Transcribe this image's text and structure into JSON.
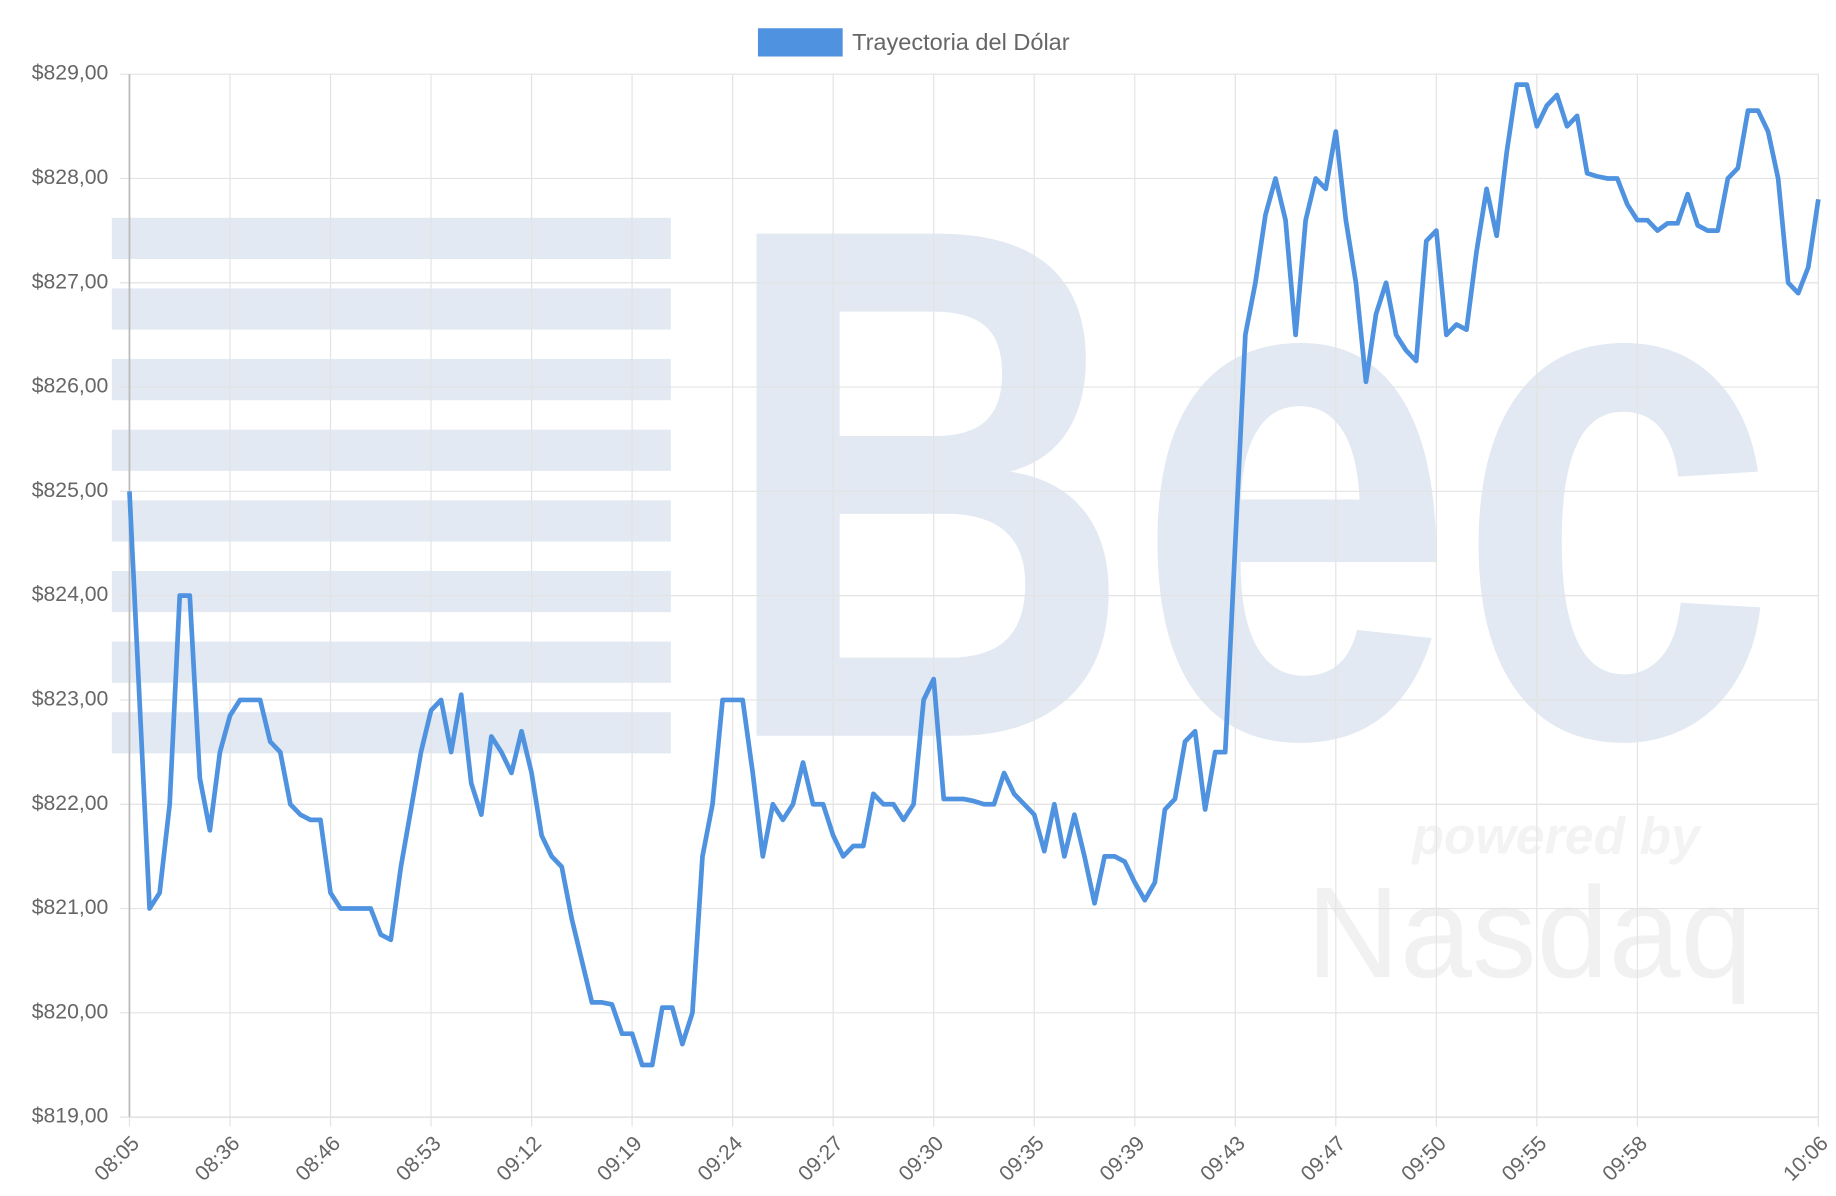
{
  "chart_data": {
    "type": "line",
    "watermark": {
      "logo": "Bec",
      "tagline": "powered by",
      "brand": "Nasdaq"
    },
    "categories": [
      "08:05",
      null,
      null,
      null,
      null,
      null,
      null,
      null,
      null,
      null,
      "08:36",
      null,
      null,
      null,
      null,
      null,
      null,
      null,
      null,
      null,
      "08:46",
      null,
      null,
      null,
      null,
      null,
      null,
      null,
      null,
      null,
      "08:53",
      null,
      null,
      null,
      null,
      null,
      null,
      null,
      null,
      null,
      "09:12",
      null,
      null,
      null,
      null,
      null,
      null,
      null,
      null,
      null,
      "09:19",
      null,
      null,
      null,
      null,
      null,
      null,
      null,
      null,
      null,
      "09:24",
      null,
      null,
      null,
      null,
      null,
      null,
      null,
      null,
      null,
      "09:27",
      null,
      null,
      null,
      null,
      null,
      null,
      null,
      null,
      null,
      "09:30",
      null,
      null,
      null,
      null,
      null,
      null,
      null,
      null,
      null,
      "09:35",
      null,
      null,
      null,
      null,
      null,
      null,
      null,
      null,
      null,
      "09:39",
      null,
      null,
      null,
      null,
      null,
      null,
      null,
      null,
      null,
      "09:43",
      null,
      null,
      null,
      null,
      null,
      null,
      null,
      null,
      null,
      "09:47",
      null,
      null,
      null,
      null,
      null,
      null,
      null,
      null,
      null,
      "09:50",
      null,
      null,
      null,
      null,
      null,
      null,
      null,
      null,
      null,
      "09:55",
      null,
      null,
      null,
      null,
      null,
      null,
      null,
      null,
      null,
      "09:58",
      null,
      null,
      null,
      null,
      null,
      null,
      null,
      null,
      null,
      null,
      null,
      null,
      null,
      null,
      null,
      null,
      null,
      "10:06"
    ],
    "series": [
      {
        "name": "Trayectoria del Dólar",
        "color": "#4f93e0",
        "values": [
          825.0,
          823.0,
          821.0,
          821.15,
          822.0,
          824.0,
          824.0,
          822.25,
          821.75,
          822.5,
          822.85,
          823.0,
          823.0,
          823.0,
          822.6,
          822.5,
          822.0,
          821.9,
          821.85,
          821.85,
          821.15,
          821.0,
          821.0,
          821.0,
          821.0,
          820.75,
          820.7,
          821.4,
          821.95,
          822.5,
          822.9,
          823.0,
          822.5,
          823.05,
          822.2,
          821.9,
          822.65,
          822.5,
          822.3,
          822.7,
          822.3,
          821.7,
          821.5,
          821.4,
          820.9,
          820.5,
          820.1,
          820.1,
          820.08,
          819.8,
          819.8,
          819.5,
          819.5,
          820.05,
          820.05,
          819.7,
          820.0,
          821.5,
          822.0,
          823.0,
          823.0,
          823.0,
          822.3,
          821.5,
          822.0,
          821.85,
          822.0,
          822.4,
          822.0,
          822.0,
          821.7,
          821.5,
          821.6,
          821.6,
          822.1,
          822.0,
          822.0,
          821.85,
          822.0,
          823.0,
          823.2,
          822.05,
          822.05,
          822.05,
          822.03,
          822.0,
          822.0,
          822.3,
          822.1,
          822.0,
          821.9,
          821.55,
          822.0,
          821.5,
          821.9,
          821.5,
          821.05,
          821.5,
          821.5,
          821.45,
          821.25,
          821.08,
          821.25,
          821.95,
          822.05,
          822.6,
          822.7,
          821.95,
          822.5,
          822.5,
          824.5,
          826.5,
          827.0,
          827.65,
          828.0,
          827.6,
          826.5,
          827.6,
          828.0,
          827.9,
          828.45,
          827.6,
          827.0,
          826.05,
          826.7,
          827.0,
          826.5,
          826.35,
          826.25,
          827.4,
          827.5,
          826.5,
          826.6,
          826.55,
          827.3,
          827.9,
          827.45,
          828.25,
          828.9,
          828.9,
          828.5,
          828.7,
          828.8,
          828.5,
          828.6,
          828.05,
          828.02,
          828.0,
          828.0,
          827.75,
          827.6,
          827.6,
          827.5,
          827.57,
          827.57,
          827.85,
          827.55,
          827.5,
          827.5,
          828.0,
          828.1,
          828.65,
          828.65,
          828.45,
          828.0,
          827.0,
          826.9,
          827.15,
          827.8
        ]
      }
    ],
    "ylim": [
      819,
      829
    ],
    "yticks": [
      {
        "value": 819,
        "label": "$819,00"
      },
      {
        "value": 820,
        "label": "$820,00"
      },
      {
        "value": 821,
        "label": "$821,00"
      },
      {
        "value": 822,
        "label": "$822,00"
      },
      {
        "value": 823,
        "label": "$823,00"
      },
      {
        "value": 824,
        "label": "$824,00"
      },
      {
        "value": 825,
        "label": "$825,00"
      },
      {
        "value": 826,
        "label": "$826,00"
      },
      {
        "value": 827,
        "label": "$827,00"
      },
      {
        "value": 828,
        "label": "$828,00"
      },
      {
        "value": 829,
        "label": "$829,00"
      }
    ],
    "grid": true,
    "legend": "top"
  }
}
